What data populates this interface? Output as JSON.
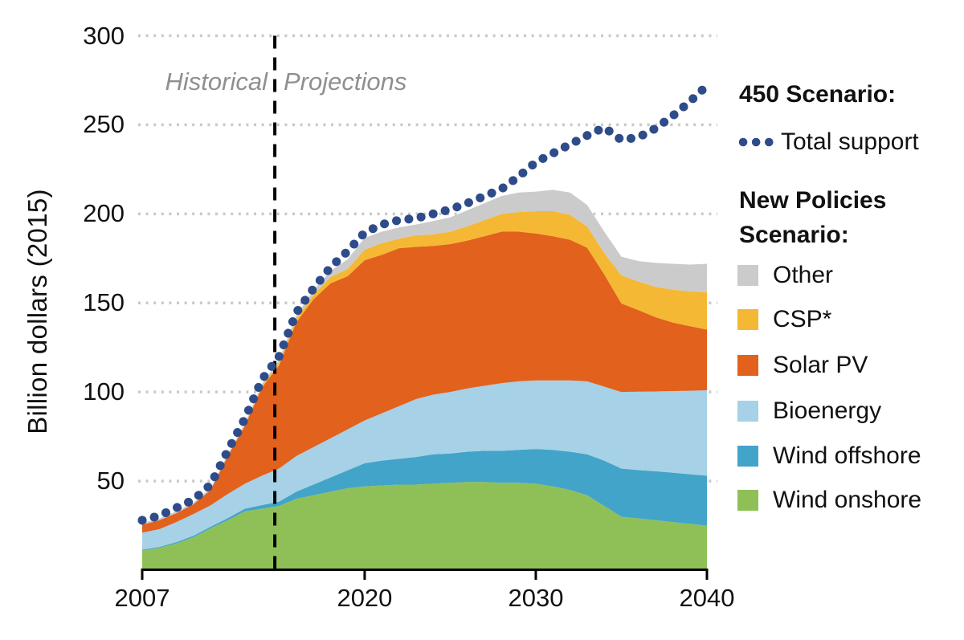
{
  "figure": {
    "y_axis_label": "Billion dollars (2015)",
    "historical_label": "Historical",
    "projections_label": "Projections"
  },
  "legend": {
    "scenario450_title": "450 Scenario:",
    "scenario450_item": "Total support",
    "nps_title_line1": "New Policies",
    "nps_title_line2": "Scenario:",
    "items": [
      {
        "label": "Other",
        "color": "#cbcbcb"
      },
      {
        "label": "CSP*",
        "color": "#f5b834"
      },
      {
        "label": "Solar PV",
        "color": "#e2611d"
      },
      {
        "label": "Bioenergy",
        "color": "#a6d1e6"
      },
      {
        "label": "Wind offshore",
        "color": "#42a4c9"
      },
      {
        "label": "Wind onshore",
        "color": "#8fc058"
      }
    ]
  },
  "chart_data": {
    "type": "area",
    "stacked": true,
    "title": "",
    "ylabel": "Billion dollars (2015)",
    "ylim": [
      0,
      300
    ],
    "y_ticks": [
      300,
      250,
      200,
      150,
      100,
      50
    ],
    "x_ticks": [
      2007,
      2020,
      2030,
      2040
    ],
    "gridlines": "horizontal-dotted",
    "divider": {
      "x": 2014.75,
      "label_left": "Historical",
      "label_right": "Projections"
    },
    "x": [
      2007,
      2008,
      2009,
      2010,
      2011,
      2012,
      2013,
      2014,
      2015,
      2016,
      2017,
      2018,
      2019,
      2020,
      2021,
      2022,
      2023,
      2024,
      2025,
      2026,
      2027,
      2028,
      2029,
      2030,
      2031,
      2032,
      2033,
      2034,
      2035,
      2036,
      2037,
      2038,
      2039,
      2040
    ],
    "series": [
      {
        "name": "Wind onshore",
        "color": "#8fc058",
        "values": [
          11,
          12.5,
          15,
          18.5,
          23.5,
          28,
          33,
          34.5,
          36,
          40,
          42,
          44,
          46,
          47,
          47.5,
          48,
          48,
          48.5,
          49,
          49.5,
          49.5,
          49,
          49,
          48.5,
          47,
          45,
          42,
          36,
          30,
          29,
          28,
          27,
          26,
          25
        ]
      },
      {
        "name": "Wind offshore",
        "color": "#42a4c9",
        "values": [
          0.5,
          0.5,
          0.7,
          0.8,
          0.9,
          1.2,
          1.5,
          2,
          2.5,
          4,
          6,
          8,
          10,
          13,
          14,
          14.5,
          15.5,
          16.5,
          16.5,
          17,
          17.5,
          18,
          18.5,
          19.5,
          20.5,
          21.5,
          23,
          25.5,
          27,
          27.2,
          27.5,
          27.7,
          27.8,
          28
        ]
      },
      {
        "name": "Bioenergy",
        "color": "#a6d1e6",
        "values": [
          9.5,
          10,
          11.3,
          12.2,
          12,
          13.5,
          14,
          16.5,
          18.5,
          20,
          21,
          22,
          23,
          24,
          26.5,
          29.5,
          32.5,
          33.5,
          34.5,
          35.5,
          36.5,
          38,
          38.5,
          38.5,
          39,
          40,
          41,
          41.5,
          43,
          44,
          44.8,
          45.8,
          46.9,
          48
        ]
      },
      {
        "name": "Solar PV",
        "color": "#e2611d",
        "values": [
          4.5,
          5,
          5,
          5.5,
          8.6,
          21.3,
          32.5,
          49.5,
          58,
          75,
          83,
          87,
          86,
          90,
          89,
          88.7,
          85.5,
          83.5,
          83,
          83,
          84,
          85,
          84,
          82.5,
          81,
          79,
          75,
          63,
          49.7,
          45.8,
          41.7,
          38.5,
          36.3,
          34
        ]
      },
      {
        "name": "CSP*",
        "color": "#f5b834",
        "values": [
          0,
          0,
          0,
          0,
          0,
          0,
          0.5,
          1,
          1.5,
          2,
          2.5,
          3.5,
          4,
          6,
          6.5,
          5.3,
          6.5,
          6.5,
          7,
          8,
          9,
          10,
          11,
          12.5,
          14,
          14,
          12,
          12,
          15.8,
          16,
          17,
          18.5,
          19.5,
          21
        ]
      },
      {
        "name": "Other",
        "color": "#cbcbcb",
        "values": [
          1,
          1,
          1,
          1,
          1,
          1,
          1,
          1,
          1.5,
          2,
          2.5,
          3.5,
          5.5,
          6.5,
          6.5,
          6.4,
          6,
          7.5,
          8,
          9,
          9.5,
          10,
          11,
          11,
          12,
          12.5,
          12,
          12,
          10.5,
          11.5,
          13.5,
          14.5,
          15,
          16
        ]
      }
    ],
    "line_series": {
      "name": "450 Scenario: Total support",
      "color": "#2e4c8a",
      "style": "dotted",
      "values": [
        28,
        30.5,
        35,
        39.5,
        48,
        67,
        85,
        107,
        120,
        144.5,
        158,
        170,
        179,
        189.5,
        194,
        196.5,
        197.5,
        200,
        202.5,
        206,
        210,
        214,
        221,
        229,
        234,
        239,
        244,
        248.5,
        241.5,
        243,
        248,
        255,
        263,
        272
      ]
    }
  }
}
